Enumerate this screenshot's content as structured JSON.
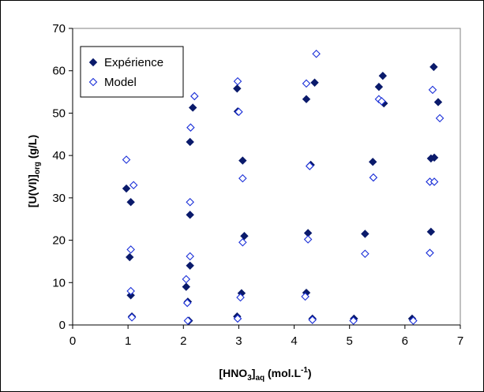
{
  "chart_data": {
    "type": "scatter",
    "title": "",
    "xlabel": {
      "main": "[HNO",
      "sub1": "3",
      "mid": "]",
      "sub2": "aq",
      "tail": " (mol.L",
      "sup": "-1",
      "end": ")"
    },
    "ylabel": {
      "main": "[U(VI)]",
      "sub": "org",
      "tail": " (g/L)"
    },
    "xlim": [
      0,
      7
    ],
    "ylim": [
      0,
      70
    ],
    "xticks": [
      0,
      1,
      2,
      3,
      4,
      5,
      6,
      7
    ],
    "yticks": [
      0,
      10,
      20,
      30,
      40,
      50,
      60,
      70
    ],
    "grid": false,
    "legend_position": "top-left",
    "series": [
      {
        "name": "Expérience",
        "marker": "filled-diamond",
        "color": "#0a1a6b",
        "points": [
          [
            0.97,
            32.2
          ],
          [
            1.05,
            29.0
          ],
          [
            1.03,
            16.0
          ],
          [
            1.05,
            7.0
          ],
          [
            1.07,
            2.0
          ],
          [
            2.17,
            51.3
          ],
          [
            2.12,
            43.2
          ],
          [
            2.12,
            26.0
          ],
          [
            2.12,
            14.0
          ],
          [
            2.05,
            9.0
          ],
          [
            2.08,
            5.5
          ],
          [
            2.1,
            1.0
          ],
          [
            2.97,
            55.8
          ],
          [
            2.98,
            50.4
          ],
          [
            3.07,
            38.8
          ],
          [
            3.1,
            21.0
          ],
          [
            3.05,
            7.5
          ],
          [
            2.97,
            2.0
          ],
          [
            4.37,
            57.2
          ],
          [
            4.22,
            53.3
          ],
          [
            4.3,
            37.8
          ],
          [
            4.25,
            21.7
          ],
          [
            4.22,
            7.6
          ],
          [
            4.33,
            1.5
          ],
          [
            5.6,
            58.8
          ],
          [
            5.53,
            56.2
          ],
          [
            5.62,
            52.3
          ],
          [
            5.42,
            38.5
          ],
          [
            5.28,
            21.5
          ],
          [
            5.08,
            1.5
          ],
          [
            6.52,
            60.9
          ],
          [
            6.6,
            52.6
          ],
          [
            6.47,
            39.3
          ],
          [
            6.53,
            39.5
          ],
          [
            6.47,
            22.0
          ],
          [
            6.13,
            1.5
          ]
        ]
      },
      {
        "name": "Model",
        "marker": "open-diamond",
        "color": "#1a2fd8",
        "points": [
          [
            0.97,
            39.0
          ],
          [
            1.1,
            33.0
          ],
          [
            1.05,
            17.8
          ],
          [
            1.05,
            8.0
          ],
          [
            1.07,
            1.8
          ],
          [
            2.2,
            54.0
          ],
          [
            2.13,
            46.6
          ],
          [
            2.12,
            29.0
          ],
          [
            2.12,
            16.2
          ],
          [
            2.05,
            10.8
          ],
          [
            2.07,
            5.2
          ],
          [
            2.08,
            1.0
          ],
          [
            2.98,
            57.5
          ],
          [
            3.0,
            50.3
          ],
          [
            3.07,
            34.6
          ],
          [
            3.07,
            19.5
          ],
          [
            3.03,
            6.5
          ],
          [
            2.98,
            1.5
          ],
          [
            4.4,
            64.0
          ],
          [
            4.22,
            57.0
          ],
          [
            4.28,
            37.5
          ],
          [
            4.25,
            20.2
          ],
          [
            4.2,
            6.7
          ],
          [
            4.33,
            1.2
          ],
          [
            5.53,
            53.3
          ],
          [
            5.58,
            52.8
          ],
          [
            5.43,
            34.8
          ],
          [
            5.28,
            16.8
          ],
          [
            5.07,
            1.0
          ],
          [
            6.5,
            55.5
          ],
          [
            6.63,
            48.8
          ],
          [
            6.45,
            33.8
          ],
          [
            6.53,
            33.8
          ],
          [
            6.45,
            17.0
          ],
          [
            6.15,
            1.0
          ]
        ]
      }
    ]
  }
}
